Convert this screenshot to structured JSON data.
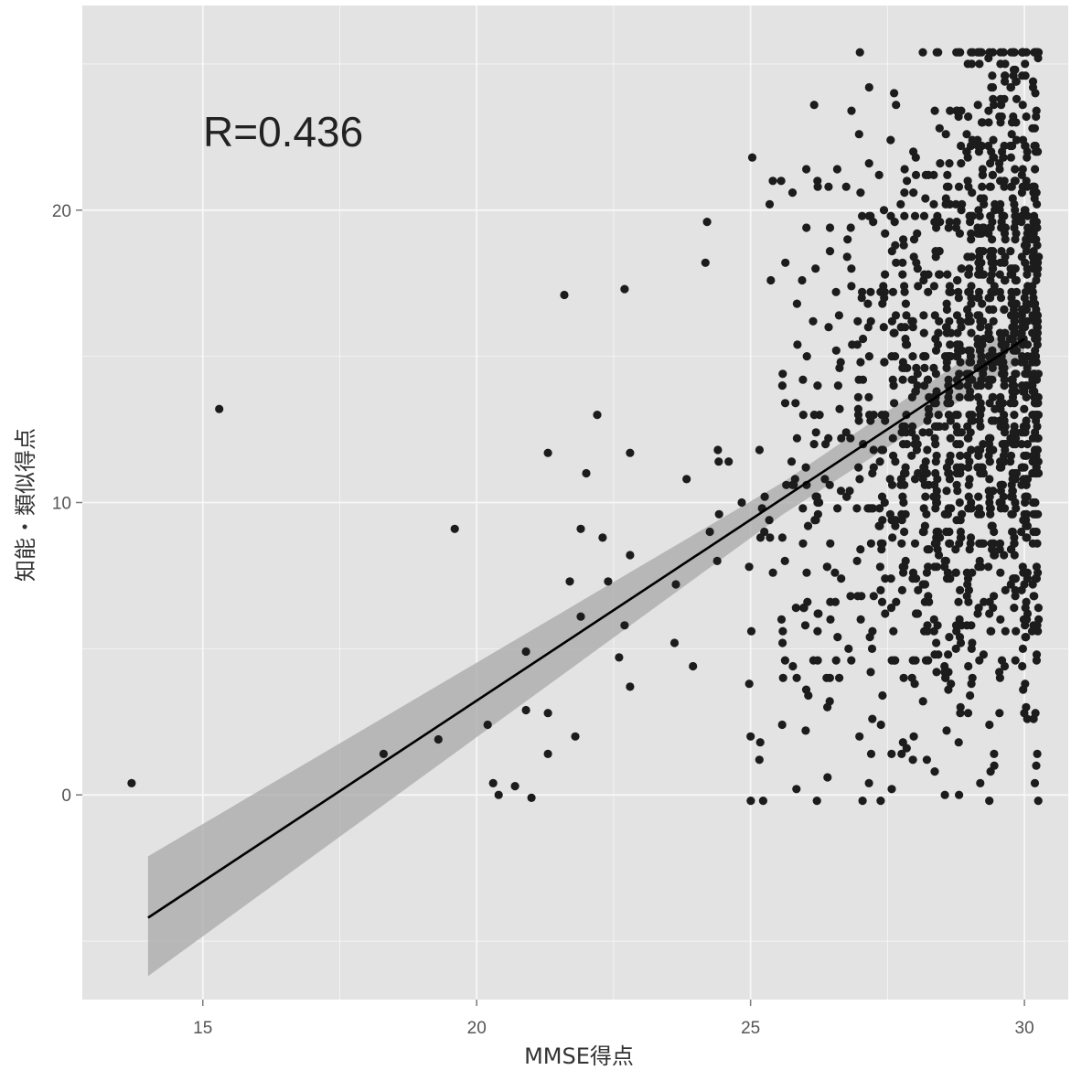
{
  "chart_data": {
    "type": "scatter",
    "title": "",
    "xlabel": "MMSE得点",
    "ylabel": "知能・類似得点",
    "annotation": "R=0.436",
    "x_ticks": [
      15,
      20,
      25,
      30
    ],
    "y_ticks": [
      0,
      10,
      20
    ],
    "xlim": [
      12.8,
      30.8
    ],
    "ylim": [
      -7.0,
      27.0
    ],
    "grid": true,
    "legend": "none",
    "regression": {
      "x": [
        14.0,
        30.0
      ],
      "y": [
        -4.2,
        15.6
      ],
      "band_lower_start": -6.2,
      "band_upper_start": -2.1,
      "band_lower_end": 14.9,
      "band_upper_end": 16.3
    },
    "colors": {
      "panel": "#e3e3e3",
      "grid": "#f7f7f7",
      "point": "#1c1c1c",
      "band": "#a8a8a8",
      "line": "#000000"
    },
    "outliers": [
      [
        13.7,
        0.4
      ],
      [
        15.3,
        13.2
      ],
      [
        18.3,
        1.4
      ],
      [
        19.3,
        1.9
      ],
      [
        19.6,
        9.1
      ],
      [
        20.2,
        2.4
      ],
      [
        20.3,
        0.4
      ],
      [
        20.4,
        0.0
      ],
      [
        20.7,
        0.3
      ],
      [
        20.9,
        2.9
      ],
      [
        20.9,
        4.9
      ],
      [
        21.0,
        -0.1
      ],
      [
        21.3,
        1.4
      ],
      [
        21.3,
        2.8
      ],
      [
        21.3,
        11.7
      ],
      [
        21.6,
        17.1
      ],
      [
        21.7,
        7.3
      ],
      [
        21.8,
        2.0
      ],
      [
        21.9,
        6.1
      ],
      [
        21.9,
        9.1
      ],
      [
        22.0,
        11.0
      ],
      [
        22.2,
        13.0
      ],
      [
        22.3,
        8.8
      ],
      [
        22.4,
        7.3
      ],
      [
        22.6,
        4.7
      ],
      [
        22.7,
        5.8
      ],
      [
        22.7,
        17.3
      ],
      [
        22.8,
        11.7
      ],
      [
        22.8,
        8.2
      ],
      [
        22.8,
        3.7
      ]
    ],
    "cluster_count": 1500
  }
}
